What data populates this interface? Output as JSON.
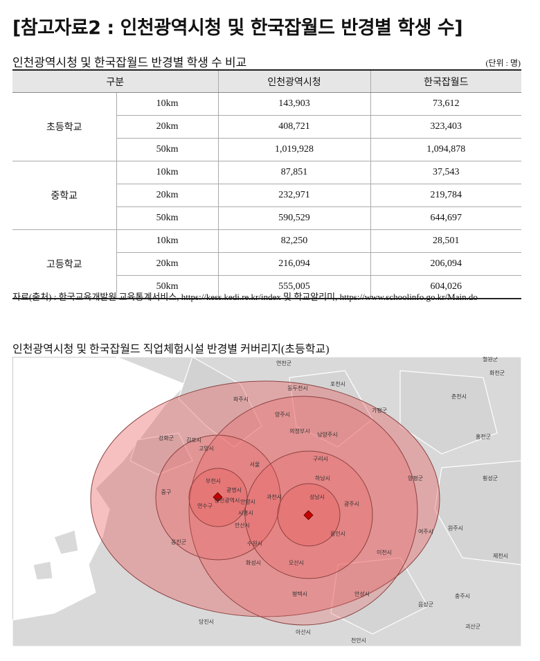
{
  "header": {
    "title": "[참고자료2 : 인천광역시청 및 한국잡월드 반경별 학생 수]"
  },
  "table": {
    "title": "인천광역시청 및 한국잡월드 반경별 학생 수 비교",
    "unit": "(단위 : 명)",
    "columns": [
      "구분",
      "인천광역시청",
      "한국잡월드"
    ],
    "groups": [
      {
        "label": "초등학교",
        "rows": [
          [
            "10km",
            "143,903",
            "73,612"
          ],
          [
            "20km",
            "408,721",
            "323,403"
          ],
          [
            "50km",
            "1,019,928",
            "1,094,878"
          ]
        ]
      },
      {
        "label": "중학교",
        "rows": [
          [
            "10km",
            "87,851",
            "37,543"
          ],
          [
            "20km",
            "232,971",
            "219,784"
          ],
          [
            "50km",
            "590,529",
            "644,697"
          ]
        ]
      },
      {
        "label": "고등학교",
        "rows": [
          [
            "10km",
            "82,250",
            "28,501"
          ],
          [
            "20km",
            "216,094",
            "206,094"
          ],
          [
            "50km",
            "555,005",
            "604,026"
          ]
        ]
      }
    ],
    "source": "자료(출처) : 한국교육개발원 교육통계서비스, https://kess.kedi.re.kr/index 및 학교알리미, https://www.schoolinfo.go.kr/Main.do"
  },
  "map": {
    "title": "인천광역시청 및 한국잡월드 직업체험시설 반경별 커버리지(초등학교)",
    "labels": [
      "연천군",
      "포천시",
      "동두천시",
      "철원군",
      "화천군",
      "춘천시",
      "가평군",
      "홍천군",
      "파주시",
      "양주시",
      "의정부시",
      "남양주시",
      "구리시",
      "강화군",
      "김포시",
      "고양시",
      "서울",
      "부천시",
      "인천광역시",
      "중구",
      "연수구",
      "시흥시",
      "안산시",
      "광명시",
      "안양시",
      "과천시",
      "성남시",
      "하남시",
      "양평군",
      "횡성군",
      "광주시",
      "용인시",
      "수원시",
      "화성시",
      "오산시",
      "평택시",
      "이천시",
      "여주시",
      "원주시",
      "안성시",
      "충주시",
      "당진시",
      "아산시",
      "천안시",
      "음성군",
      "제천시",
      "괴산군",
      "옹진군"
    ]
  }
}
